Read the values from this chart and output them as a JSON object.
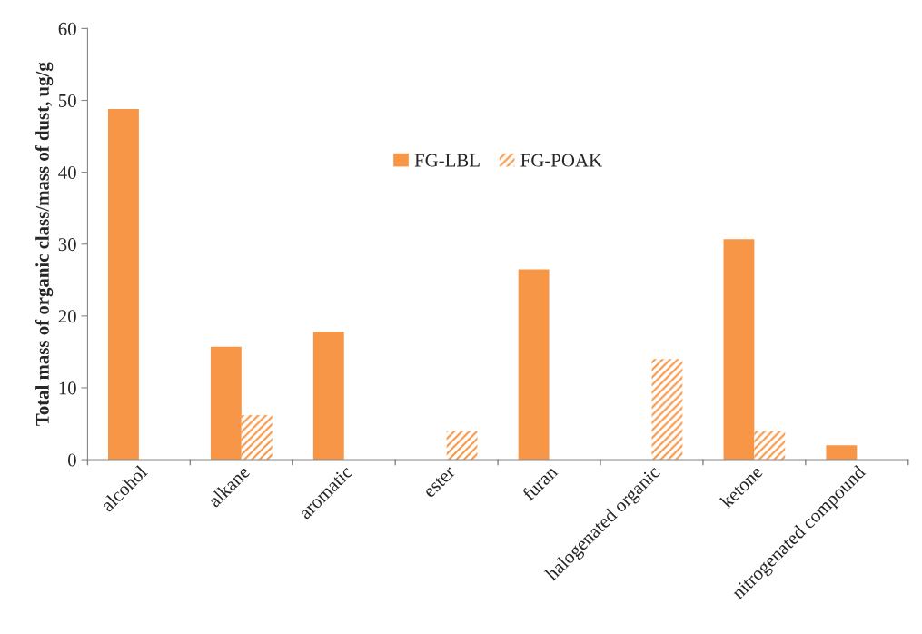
{
  "chart_data": {
    "type": "bar",
    "ylabel": "Total mass of organic class/mass of dust, ug/g",
    "categories": [
      "alcohol",
      "alkane",
      "aromatic",
      "ester",
      "furan",
      "halogenated organic",
      "ketone",
      "nitrogenated compound"
    ],
    "series": [
      {
        "name": "FG-LBL",
        "color": "#f79646",
        "values": [
          48.8,
          15.7,
          17.8,
          null,
          26.5,
          null,
          30.7,
          2.0
        ]
      },
      {
        "name": "FG-POAK",
        "color": "#f79646",
        "values": [
          null,
          6.2,
          null,
          4.0,
          null,
          14.0,
          4.0,
          null
        ]
      }
    ],
    "ylim": [
      0,
      60
    ],
    "yticks": [
      0,
      10,
      20,
      30,
      40,
      50,
      60
    ],
    "grid": false,
    "legend": "top"
  }
}
